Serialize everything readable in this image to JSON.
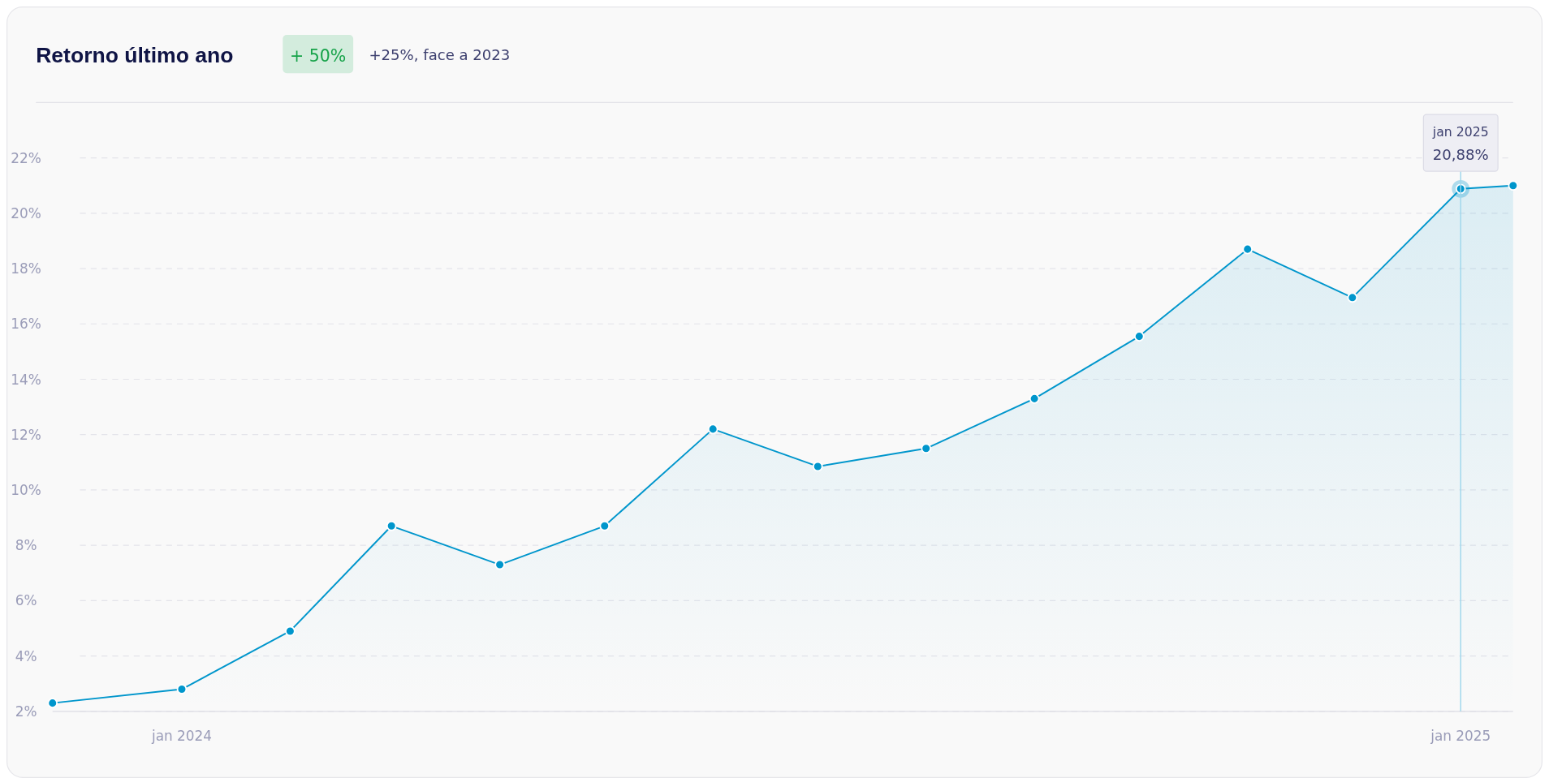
{
  "chart_data": {
    "type": "area",
    "title": "Retorno último ano",
    "subtitle": "+25%, face a 2023",
    "annotations": [
      {
        "text": "+ 50%"
      },
      "jan 2025",
      {
        "text": "20,88%",
        "x": "2025-01-01",
        "y": 20.88
      }
    ],
    "x": [
      "2023-11-25",
      "2024-01-01",
      "2024-02-01",
      "2024-03-01",
      "2024-04-01",
      "2024-05-01",
      "2024-06-01",
      "2024-07-01",
      "2024-08-01",
      "2024-09-01",
      "2024-10-01",
      "2024-11-01",
      "2024-12-01",
      "2025-01-01",
      "2025-01-16"
    ],
    "series": [
      {
        "color": "#0096cc",
        "values": [
          2.3,
          2.8,
          4.9,
          8.7,
          7.3,
          8.7,
          12.2,
          10.85,
          11.5,
          13.3,
          15.55,
          18.7,
          16.95,
          20.88,
          21.0
        ]
      }
    ],
    "xlim": [
      "2023-11-25",
      "2025-01-16"
    ],
    "xticks": [
      {
        "value": "2024-01-01",
        "label": "jan 2024"
      },
      {
        "value": "2025-01-01",
        "label": "jan 2025"
      }
    ],
    "ylim": [
      2,
      24
    ],
    "yticks": [
      {
        "value": 2,
        "label": "2%"
      },
      {
        "value": 4,
        "label": "4%"
      },
      {
        "value": 6,
        "label": "6%"
      },
      {
        "value": 8,
        "label": "8%"
      },
      {
        "value": 10,
        "label": "10%"
      },
      {
        "value": 12,
        "label": "12%"
      },
      {
        "value": 14,
        "label": "14%"
      },
      {
        "value": 16,
        "label": "16%"
      },
      {
        "value": 18,
        "label": "18%"
      },
      {
        "value": 20,
        "label": "20%"
      },
      {
        "value": 22,
        "label": "22%"
      }
    ],
    "ref_lines": [
      {
        "axis": "x",
        "value": "2025-01-01",
        "color": "#9fd7ec"
      }
    ],
    "grid": "y",
    "line_style": "solid",
    "marker": "circle"
  }
}
